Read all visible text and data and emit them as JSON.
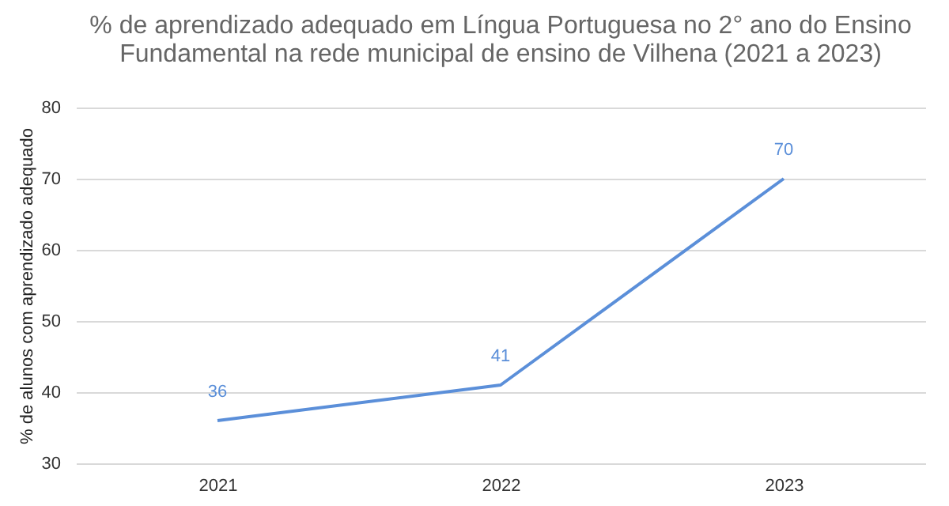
{
  "chart_data": {
    "type": "line",
    "title": "% de aprendizado adequado em Língua Portuguesa no 2° ano do Ensino Fundamental na rede municipal de ensino de Vilhena (2021 a 2023)",
    "ylabel": "% de alunos com aprendizado adequado",
    "categories": [
      "2021",
      "2022",
      "2023"
    ],
    "series": [
      {
        "color": "#5b8fd9",
        "values": [
          36,
          41,
          70
        ]
      }
    ],
    "data_labels": true,
    "ylim": [
      30,
      80
    ],
    "yticks": [
      30,
      40,
      50,
      60,
      70,
      80
    ],
    "grid": "y",
    "marker": "none",
    "line_style": "solid"
  }
}
